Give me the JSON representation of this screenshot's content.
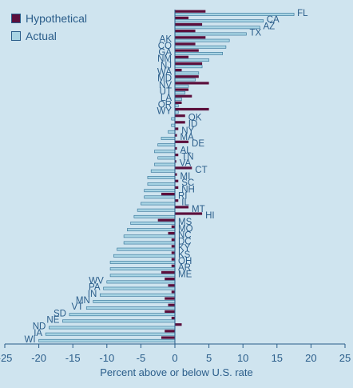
{
  "chart_data": {
    "type": "bar",
    "orientation": "horizontal",
    "xlabel": "Percent above or below U.S. rate",
    "xlim": [
      -25,
      25
    ],
    "xticks": [
      -25,
      -20,
      -15,
      -10,
      -5,
      0,
      5,
      10,
      15,
      20,
      25
    ],
    "legend_position": "top-left",
    "categories": [
      "FL",
      "CA",
      "AZ",
      "TX",
      "AK",
      "CO",
      "GA",
      "NM",
      "NJ",
      "WA",
      "MD",
      "NV",
      "UT",
      "LA",
      "OR",
      "WY",
      "OK",
      "ID",
      "NY",
      "MA",
      "DE",
      "AL",
      "TN",
      "VA",
      "CT",
      "MI",
      "SC",
      "NH",
      "RI",
      "IL",
      "MT",
      "HI",
      "MS",
      "MO",
      "NC",
      "DC",
      "KY",
      "KS",
      "OH",
      "AR",
      "ME",
      "WV",
      "PA",
      "IN",
      "MN",
      "VT",
      "SD",
      "NE",
      "ND",
      "IA",
      "WI"
    ],
    "series": [
      {
        "name": "Hypothetical",
        "color": "#5c0f3c",
        "values": [
          4.5,
          2,
          4,
          3,
          4.5,
          3,
          3.5,
          2,
          4,
          1,
          3.5,
          5,
          2,
          2.5,
          1,
          5,
          1.5,
          1.5,
          0.5,
          0.3,
          2,
          0.3,
          0.5,
          0.2,
          2.5,
          0.3,
          0.5,
          0.5,
          -2,
          0.5,
          2,
          4,
          -2.5,
          -0.5,
          -1,
          -0.5,
          -0.5,
          -0.5,
          -0.5,
          -0.5,
          -2,
          -1.5,
          -1,
          -0.5,
          -1.5,
          -1,
          -1.5,
          -0.5,
          1,
          -1.5,
          -2
        ]
      },
      {
        "name": "Actual",
        "color": "#a8d4e4",
        "values": [
          17.5,
          13,
          12.5,
          10.5,
          8,
          7.5,
          7,
          5,
          4,
          3.5,
          3,
          2,
          1.5,
          1,
          0.5,
          0.5,
          -0.5,
          -0.5,
          -1,
          -2,
          -2.5,
          -3,
          -2.5,
          -3,
          -3.5,
          -4,
          -4,
          -4.5,
          -4.5,
          -5,
          -5.5,
          -6,
          -6.5,
          -7,
          -7.5,
          -7.5,
          -8.5,
          -9,
          -9.5,
          -9.5,
          -9.5,
          -10,
          -10.5,
          -11,
          -12,
          -13,
          -15.5,
          -16.5,
          -18.5,
          -19,
          -20
        ]
      }
    ]
  },
  "legend": {
    "hypothetical_label": "Hypothetical",
    "actual_label": "Actual"
  }
}
